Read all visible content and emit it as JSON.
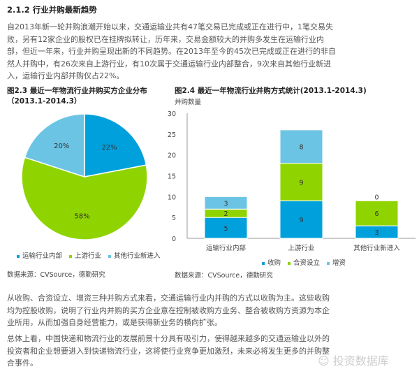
{
  "section_title": "2.1.2 行业并购最新趋势",
  "para1": [
    "自2013年新一轮并购浪潮开始以来，交通运输业共有47笔交易已完成或正在进行中，1笔交易失",
    "败，另有12家企业的股权已在挂牌拟转让，历年来，交易金额较大的并购多发生在运输行业内",
    "部，但近一年来，行业并购呈现出新的不同趋势。在2013年至今的45次已完成或正在进行的非自",
    "然人并购中，有26次来自上游行业，有10次属于交通运输行业内部整合，9次来自其他行业新进",
    "入，运输行业内部并购仅占22%。"
  ],
  "para2": [
    "从收购、合资设立、增资三种并购方式来看，交通运输行业内并购的方式以收购为主。这些收购",
    "均为控股收购，说明了行业内并购的买方企业意在控制被收购方业务、整合被收购方资源为本企",
    "业所用，从而加强自身经营能力，或是获得新业务的横向扩张。"
  ],
  "para3": [
    "总体上看，中国快递和物流行业的发展前景十分具有吸引力，使得越来越多的交通运输业以外的",
    "投资者和企业想要进入到快递物流行业，这将使行业竞争更加激烈，未来必将发生更多的并购整",
    "合事件。"
  ],
  "watermark": "投资数据库",
  "colors": {
    "blue": "#00a0dc",
    "green": "#8fd400",
    "light": "#6cc4e4"
  },
  "chart_data": [
    {
      "type": "pie",
      "title": "图2.3  最近一年物流行业并购买方企业分布",
      "subtitle": "（2013.1-2014.3）",
      "categories": [
        "运输行业内部",
        "上游行业",
        "其他行业新进入"
      ],
      "values": [
        22,
        58,
        20
      ],
      "labels": [
        "22%",
        "58%",
        "20%"
      ],
      "legend_position": "bottom",
      "source": "数据来源：CVSource，德勤研究"
    },
    {
      "type": "bar",
      "stacked": true,
      "title": "图2.4  最近一年物流行业并购方式统计(2013.1-2014.3)",
      "ylabel": "并购数量",
      "ylim": [
        0,
        30
      ],
      "yticks": [
        "0",
        "5",
        "10",
        "15",
        "20",
        "25",
        "30"
      ],
      "categories": [
        "运输行业内部",
        "上游行业",
        "其他行业新进入"
      ],
      "series": [
        {
          "name": "收购",
          "values": [
            5,
            9,
            3
          ]
        },
        {
          "name": "合资设立",
          "values": [
            2,
            9,
            6
          ]
        },
        {
          "name": "增资",
          "values": [
            3,
            8,
            0
          ]
        }
      ],
      "legend_position": "bottom",
      "source": "数据来源：CVSource，德勤研究"
    }
  ]
}
